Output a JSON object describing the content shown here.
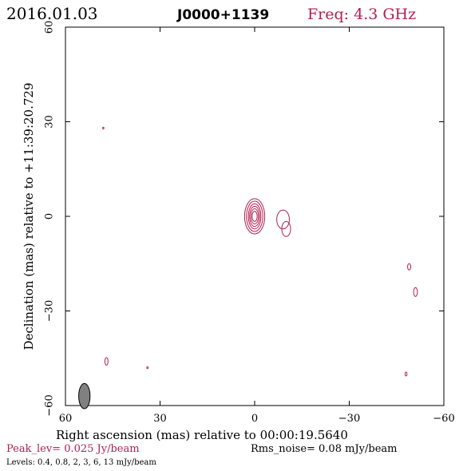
{
  "header": {
    "date": "2016.01.03",
    "source": "J0000+1139",
    "freq": "Freq: 4.3 GHz"
  },
  "footer": {
    "peak": "Peak_lev=  0.025 Jy/beam",
    "rms": "Rms_noise= 0.08 mJy/beam",
    "levels": "Levels: 0.4, 0.8,   2,   3,   6,   13 mJy/beam"
  },
  "colors": {
    "contour": "#b0204f",
    "frame": "#000000",
    "beam": "#808080"
  },
  "chart_data": {
    "type": "contour",
    "xlabel": "Right ascension (mas) relative to 00:00:19.5640",
    "ylabel": "Declination (mas) relative to +11:39:20.729",
    "xlim": [
      60,
      -60
    ],
    "ylim": [
      -60,
      60
    ],
    "xticks": [
      60,
      30,
      0,
      -30,
      -60
    ],
    "yticks": [
      60,
      30,
      0,
      -30,
      -60
    ],
    "xtick_labels": [
      "60",
      "30",
      "0",
      "−30",
      "−60"
    ],
    "ytick_labels": [
      "60",
      "30",
      "0",
      "−30",
      "−60"
    ],
    "levels_mJy": [
      0.4,
      0.8,
      2,
      3,
      6,
      13
    ],
    "peak_Jy_per_beam": 0.025,
    "rms_mJy_per_beam": 0.08,
    "components": [
      {
        "name": "core",
        "x": 0,
        "y": 0,
        "rings": [
          [
            0.8,
            1.6
          ],
          [
            1.2,
            2.4
          ],
          [
            1.6,
            3.2
          ],
          [
            2.0,
            4.0
          ],
          [
            2.6,
            4.8
          ],
          [
            3.2,
            5.6
          ]
        ]
      },
      {
        "name": "jet-knot",
        "x": -9,
        "y": -1,
        "rings": [
          [
            2.0,
            3.0
          ]
        ]
      },
      {
        "name": "jet-knot",
        "x": -10,
        "y": -4,
        "rings": [
          [
            1.4,
            2.4
          ]
        ]
      },
      {
        "name": "noise",
        "x": -49,
        "y": -16,
        "rings": [
          [
            0.5,
            1.0
          ]
        ]
      },
      {
        "name": "noise",
        "x": -51,
        "y": -24,
        "rings": [
          [
            0.6,
            1.4
          ]
        ]
      },
      {
        "name": "noise",
        "x": -48,
        "y": -50,
        "rings": [
          [
            0.3,
            0.6
          ]
        ]
      },
      {
        "name": "noise",
        "x": 47,
        "y": -46,
        "rings": [
          [
            0.5,
            1.2
          ]
        ]
      },
      {
        "name": "noise",
        "x": 34,
        "y": -48,
        "rings": [
          [
            0.2,
            0.3
          ]
        ]
      },
      {
        "name": "noise",
        "x": 48,
        "y": 28,
        "rings": [
          [
            0.2,
            0.3
          ]
        ]
      }
    ],
    "beam": {
      "x": 54,
      "y": -57,
      "major": 4.0,
      "minor": 1.8
    }
  }
}
